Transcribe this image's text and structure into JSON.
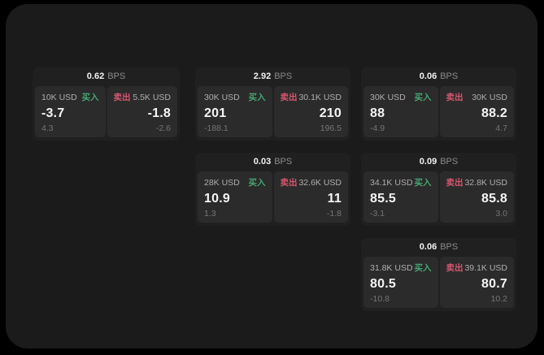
{
  "labels": {
    "bps_unit": "BPS",
    "buy": "买入",
    "sell": "卖出"
  },
  "colors": {
    "outer_bg": "#000000",
    "panel_bg": "#1b1b1b",
    "card_bg": "#202020",
    "tile_bg": "#2b2b2b",
    "buy_green": "#46a571",
    "sell_red": "#d5566d",
    "value_white": "#f5f5f5",
    "muted_gray": "#757575"
  },
  "cards": [
    {
      "pos": "r1c1",
      "bps": "0.62",
      "buy": {
        "amount": "10K USD",
        "value": "-3.7",
        "delta": "4.3"
      },
      "sell": {
        "amount": "5.5K USD",
        "value": "-1.8",
        "delta": "-2.6"
      }
    },
    {
      "pos": "r1c2",
      "bps": "2.92",
      "buy": {
        "amount": "30K USD",
        "value": "201",
        "delta": "-188.1"
      },
      "sell": {
        "amount": "30.1K USD",
        "value": "210",
        "delta": "196.5"
      }
    },
    {
      "pos": "r1c3",
      "bps": "0.06",
      "buy": {
        "amount": "30K USD",
        "value": "88",
        "delta": "-4.9"
      },
      "sell": {
        "amount": "30K USD",
        "value": "88.2",
        "delta": "4.7"
      }
    },
    {
      "pos": "r2c2",
      "bps": "0.03",
      "buy": {
        "amount": "28K USD",
        "value": "10.9",
        "delta": "1.3"
      },
      "sell": {
        "amount": "32.6K USD",
        "value": "11",
        "delta": "-1.8"
      }
    },
    {
      "pos": "r2c3",
      "bps": "0.09",
      "buy": {
        "amount": "34.1K USD",
        "value": "85.5",
        "delta": "-3.1"
      },
      "sell": {
        "amount": "32.8K USD",
        "value": "85.8",
        "delta": "3.0"
      }
    },
    {
      "pos": "r3c3",
      "bps": "0.06",
      "buy": {
        "amount": "31.8K USD",
        "value": "80.5",
        "delta": "-10.8"
      },
      "sell": {
        "amount": "39.1K USD",
        "value": "80.7",
        "delta": "10.2"
      }
    }
  ]
}
